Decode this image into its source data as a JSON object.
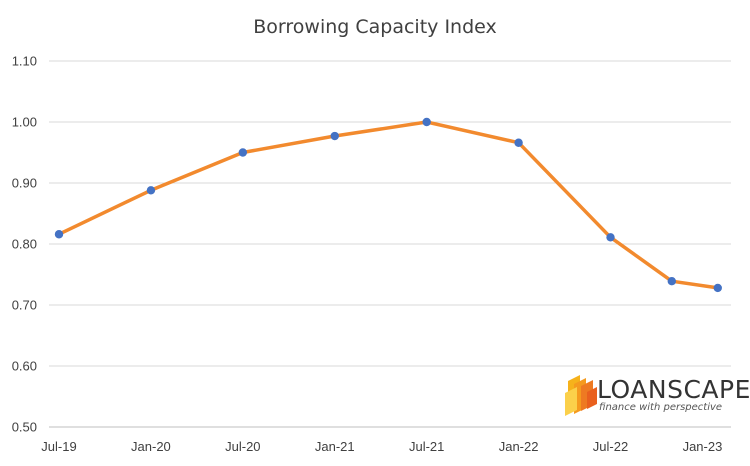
{
  "chart_data": {
    "type": "line",
    "title": "Borrowing Capacity Index",
    "xlabel": "",
    "ylabel": "",
    "x_tick_labels": [
      "Jul-19",
      "Jan-20",
      "Jul-20",
      "Jan-21",
      "Jul-21",
      "Jan-22",
      "Jul-22",
      "Jan-23"
    ],
    "x_ticks_month_index": [
      0,
      6,
      12,
      18,
      24,
      30,
      36,
      42
    ],
    "x_month_index": [
      0,
      6,
      12,
      18,
      24,
      30,
      36,
      40,
      43
    ],
    "values": [
      0.816,
      0.888,
      0.95,
      0.977,
      1.0,
      0.966,
      0.811,
      0.739,
      0.728
    ],
    "ylim": [
      0.5,
      1.1
    ],
    "y_ticks": [
      "0.50",
      "0.60",
      "0.70",
      "0.80",
      "0.90",
      "1.00",
      "1.10"
    ],
    "grid": "horizontal",
    "line_color": "#F28A2E",
    "marker_color": "#4472C4",
    "gridline_color": "#D9D9D9"
  },
  "logo": {
    "name": "LOANSCAPE",
    "tagline": "finance with perspective"
  }
}
